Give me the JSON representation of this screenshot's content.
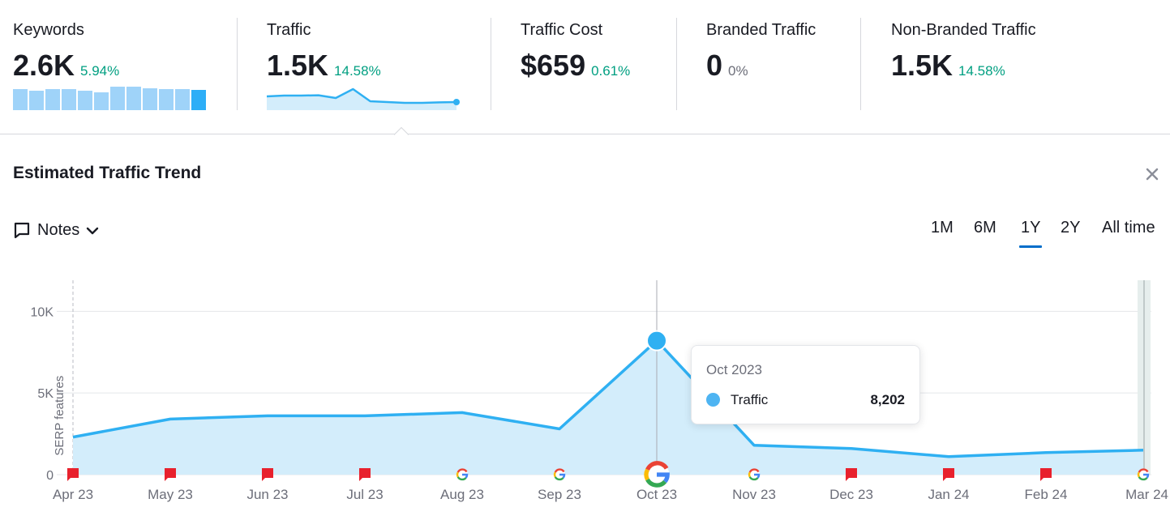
{
  "metrics": [
    {
      "label": "Keywords",
      "value": "2.6K",
      "delta": "5.94%",
      "sparkline": "bars"
    },
    {
      "label": "Traffic",
      "value": "1.5K",
      "delta": "14.58%",
      "sparkline": "line"
    },
    {
      "label": "Traffic Cost",
      "value": "$659",
      "delta": "0.61%"
    },
    {
      "label": "Branded Traffic",
      "value": "0",
      "delta": "0%"
    },
    {
      "label": "Non-Branded Traffic",
      "value": "1.5K",
      "delta": "14.58%"
    }
  ],
  "colors": {
    "positive": "#009f81",
    "neutral": "#6c6e79",
    "bar": "#9fd3f9",
    "bar_current": "#2daef7",
    "line": "#2fb0f2",
    "area": "#d3edfb",
    "accent": "#006dca",
    "flag": "#e8212d"
  },
  "sparklines": {
    "keywords_bars": [
      0.8,
      0.75,
      0.82,
      0.82,
      0.75,
      0.68,
      0.9,
      0.92,
      0.85,
      0.82,
      0.8,
      0.78
    ],
    "traffic_line": [
      0.55,
      0.6,
      0.6,
      0.62,
      0.45,
      1.0,
      0.25,
      0.2,
      0.15,
      0.15,
      0.18,
      0.2
    ]
  },
  "trend": {
    "title": "Estimated Traffic Trend",
    "close_icon": "close-icon",
    "notes_label": "Notes",
    "periods": [
      "1M",
      "6M",
      "1Y",
      "2Y",
      "All time"
    ],
    "active_period": "1Y",
    "tooltip": {
      "date": "Oct 2023",
      "series": "Traffic",
      "value": "8,202"
    }
  },
  "chart_data": {
    "type": "area",
    "x": [
      "Apr 23",
      "May 23",
      "Jun 23",
      "Jul 23",
      "Aug 23",
      "Sep 23",
      "Oct 23",
      "Nov 23",
      "Dec 23",
      "Jan 24",
      "Feb 24",
      "Mar 24"
    ],
    "series": [
      {
        "name": "Traffic",
        "values": [
          2300,
          3400,
          3600,
          3600,
          3800,
          2800,
          8202,
          1800,
          1600,
          1100,
          1350,
          1500
        ]
      }
    ],
    "y_ticks": [
      "0",
      "5K",
      "10K"
    ],
    "ylim": [
      0,
      12000
    ],
    "side_label": "SERP features",
    "markers": [
      "flag",
      "flag",
      "flag",
      "flag",
      "google",
      "google",
      "google-large",
      "google",
      "flag",
      "flag",
      "flag",
      "google"
    ],
    "highlight_index": 6,
    "grid": true
  }
}
